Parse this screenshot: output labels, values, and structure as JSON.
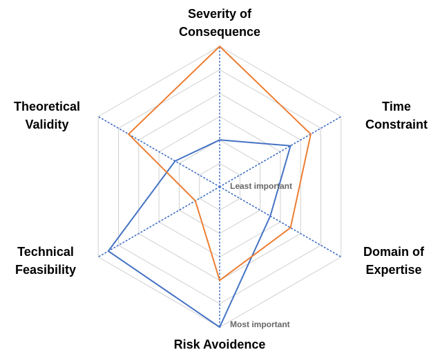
{
  "chart_data": {
    "type": "radar",
    "axes": [
      {
        "key": "severity",
        "lines": [
          "Severity of",
          "Consequence"
        ]
      },
      {
        "key": "time",
        "lines": [
          "Time",
          "Constraint"
        ]
      },
      {
        "key": "domain",
        "lines": [
          "Domain of",
          "Expertise"
        ]
      },
      {
        "key": "risk",
        "lines": [
          "Risk Avoidence"
        ]
      },
      {
        "key": "technical",
        "lines": [
          "Technical",
          "Feasibility"
        ]
      },
      {
        "key": "theoretical",
        "lines": [
          "Theoretical",
          "Validity"
        ]
      }
    ],
    "scale": {
      "min": 0,
      "max": 6,
      "rings": 6
    },
    "tick_labels": {
      "min": "Least important",
      "max": "Most important"
    },
    "grid": true,
    "legend": "none",
    "series": [
      {
        "color": "#4472C4",
        "values": [
          2,
          3.5,
          2.5,
          6,
          5.5,
          2.2
        ]
      },
      {
        "color": "#ED7D31",
        "values": [
          6,
          4.5,
          3.5,
          4,
          1.2,
          4.5
        ]
      }
    ],
    "colors": {
      "grid": "#d0d0d0",
      "axis": "#4472C4"
    }
  }
}
